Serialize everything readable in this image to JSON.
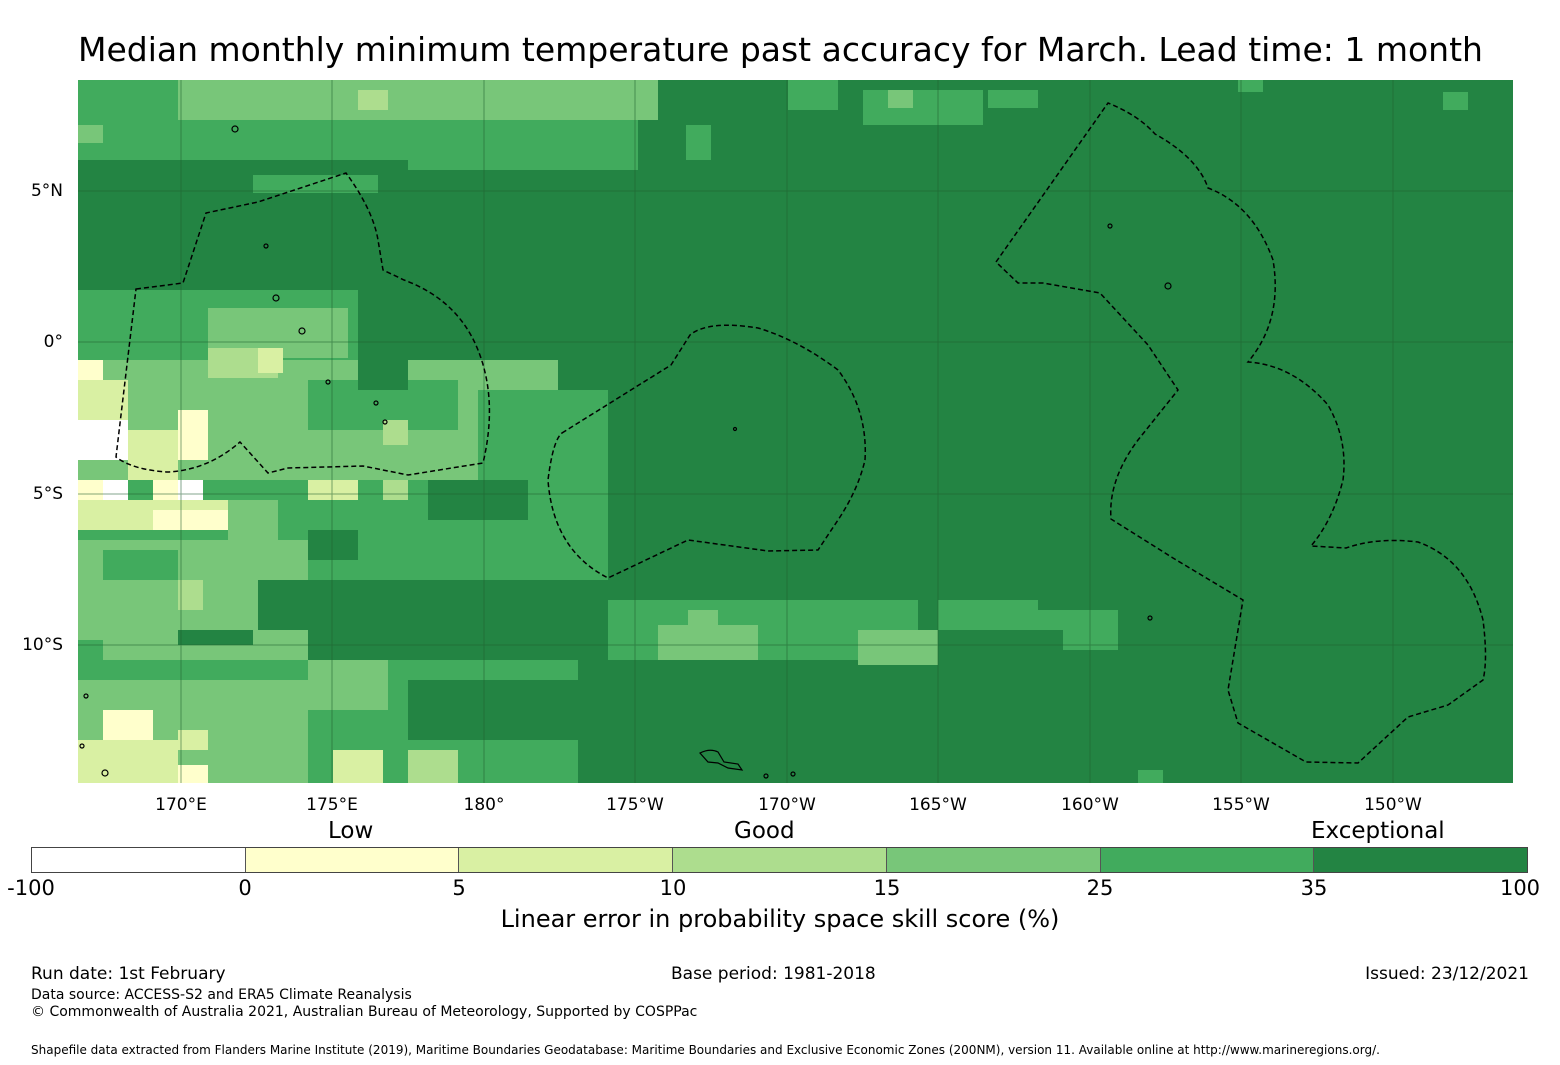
{
  "title": "Median monthly minimum temperature past accuracy for March. Lead time: 1 month",
  "map": {
    "lat_labels": [
      "5°N",
      "0°",
      "5°S",
      "10°S"
    ],
    "lon_labels": [
      "170°E",
      "175°E",
      "180°",
      "175°W",
      "170°W",
      "165°W",
      "160°W",
      "155°W",
      "150°W"
    ],
    "colors": {
      "negative": "#ffffff",
      "c0_5": "#ffffcc",
      "c5_10": "#d9f0a3",
      "c10_15": "#addd8e",
      "c15_25": "#78c679",
      "c25_35": "#41ab5d",
      "c35_100": "#238443"
    }
  },
  "colorbar": {
    "categories": [
      "Low",
      "Good",
      "Exceptional"
    ],
    "ticks": [
      "-100",
      "0",
      "5",
      "10",
      "15",
      "25",
      "35",
      "100"
    ],
    "label": "Linear error in probability space skill score (%)"
  },
  "footer": {
    "run_date": "Run date: 1st February",
    "base_period": "Base period: 1981-2018",
    "issued": "Issued: 23/12/2021",
    "data_source": "Data source: ACCESS-S2 and ERA5 Climate Reanalysis",
    "copyright": "© Commonwealth of Australia 2021, Australian Bureau of Meteorology, Supported by COSPPac",
    "shapefile": "Shapefile data extracted from Flanders Marine Institute (2019), Maritime Boundaries Geodatabase: Maritime Boundaries and Exclusive Economic Zones (200NM), version 11. Available online at http://www.marineregions.org/."
  }
}
